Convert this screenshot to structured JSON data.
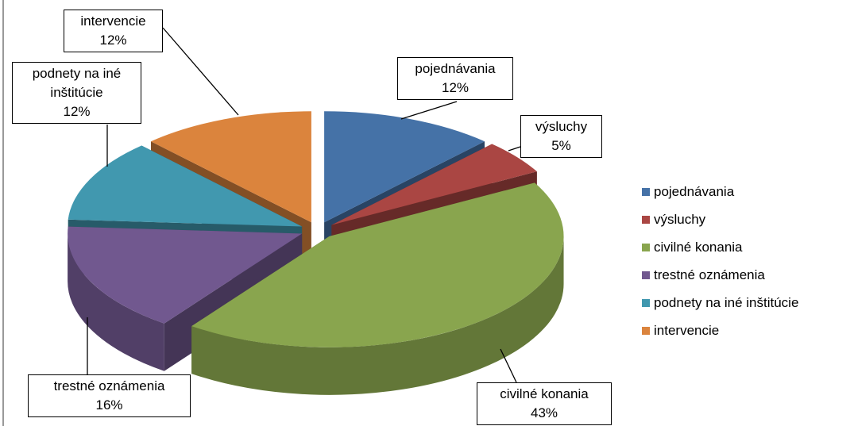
{
  "chart_data": {
    "type": "pie3d",
    "categories": [
      "pojednávania",
      "výsluchy",
      "civilné konania",
      "trestné oznámenia",
      "podnety na iné inštitúcie",
      "intervencie"
    ],
    "values": [
      12,
      5,
      43,
      16,
      12,
      12
    ],
    "value_labels": [
      "12%",
      "5%",
      "43%",
      "16%",
      "12%",
      "12%"
    ],
    "colors": [
      "#4572a7",
      "#aa4643",
      "#89a54e",
      "#71588f",
      "#4198af",
      "#db843d"
    ],
    "legend": "right"
  }
}
